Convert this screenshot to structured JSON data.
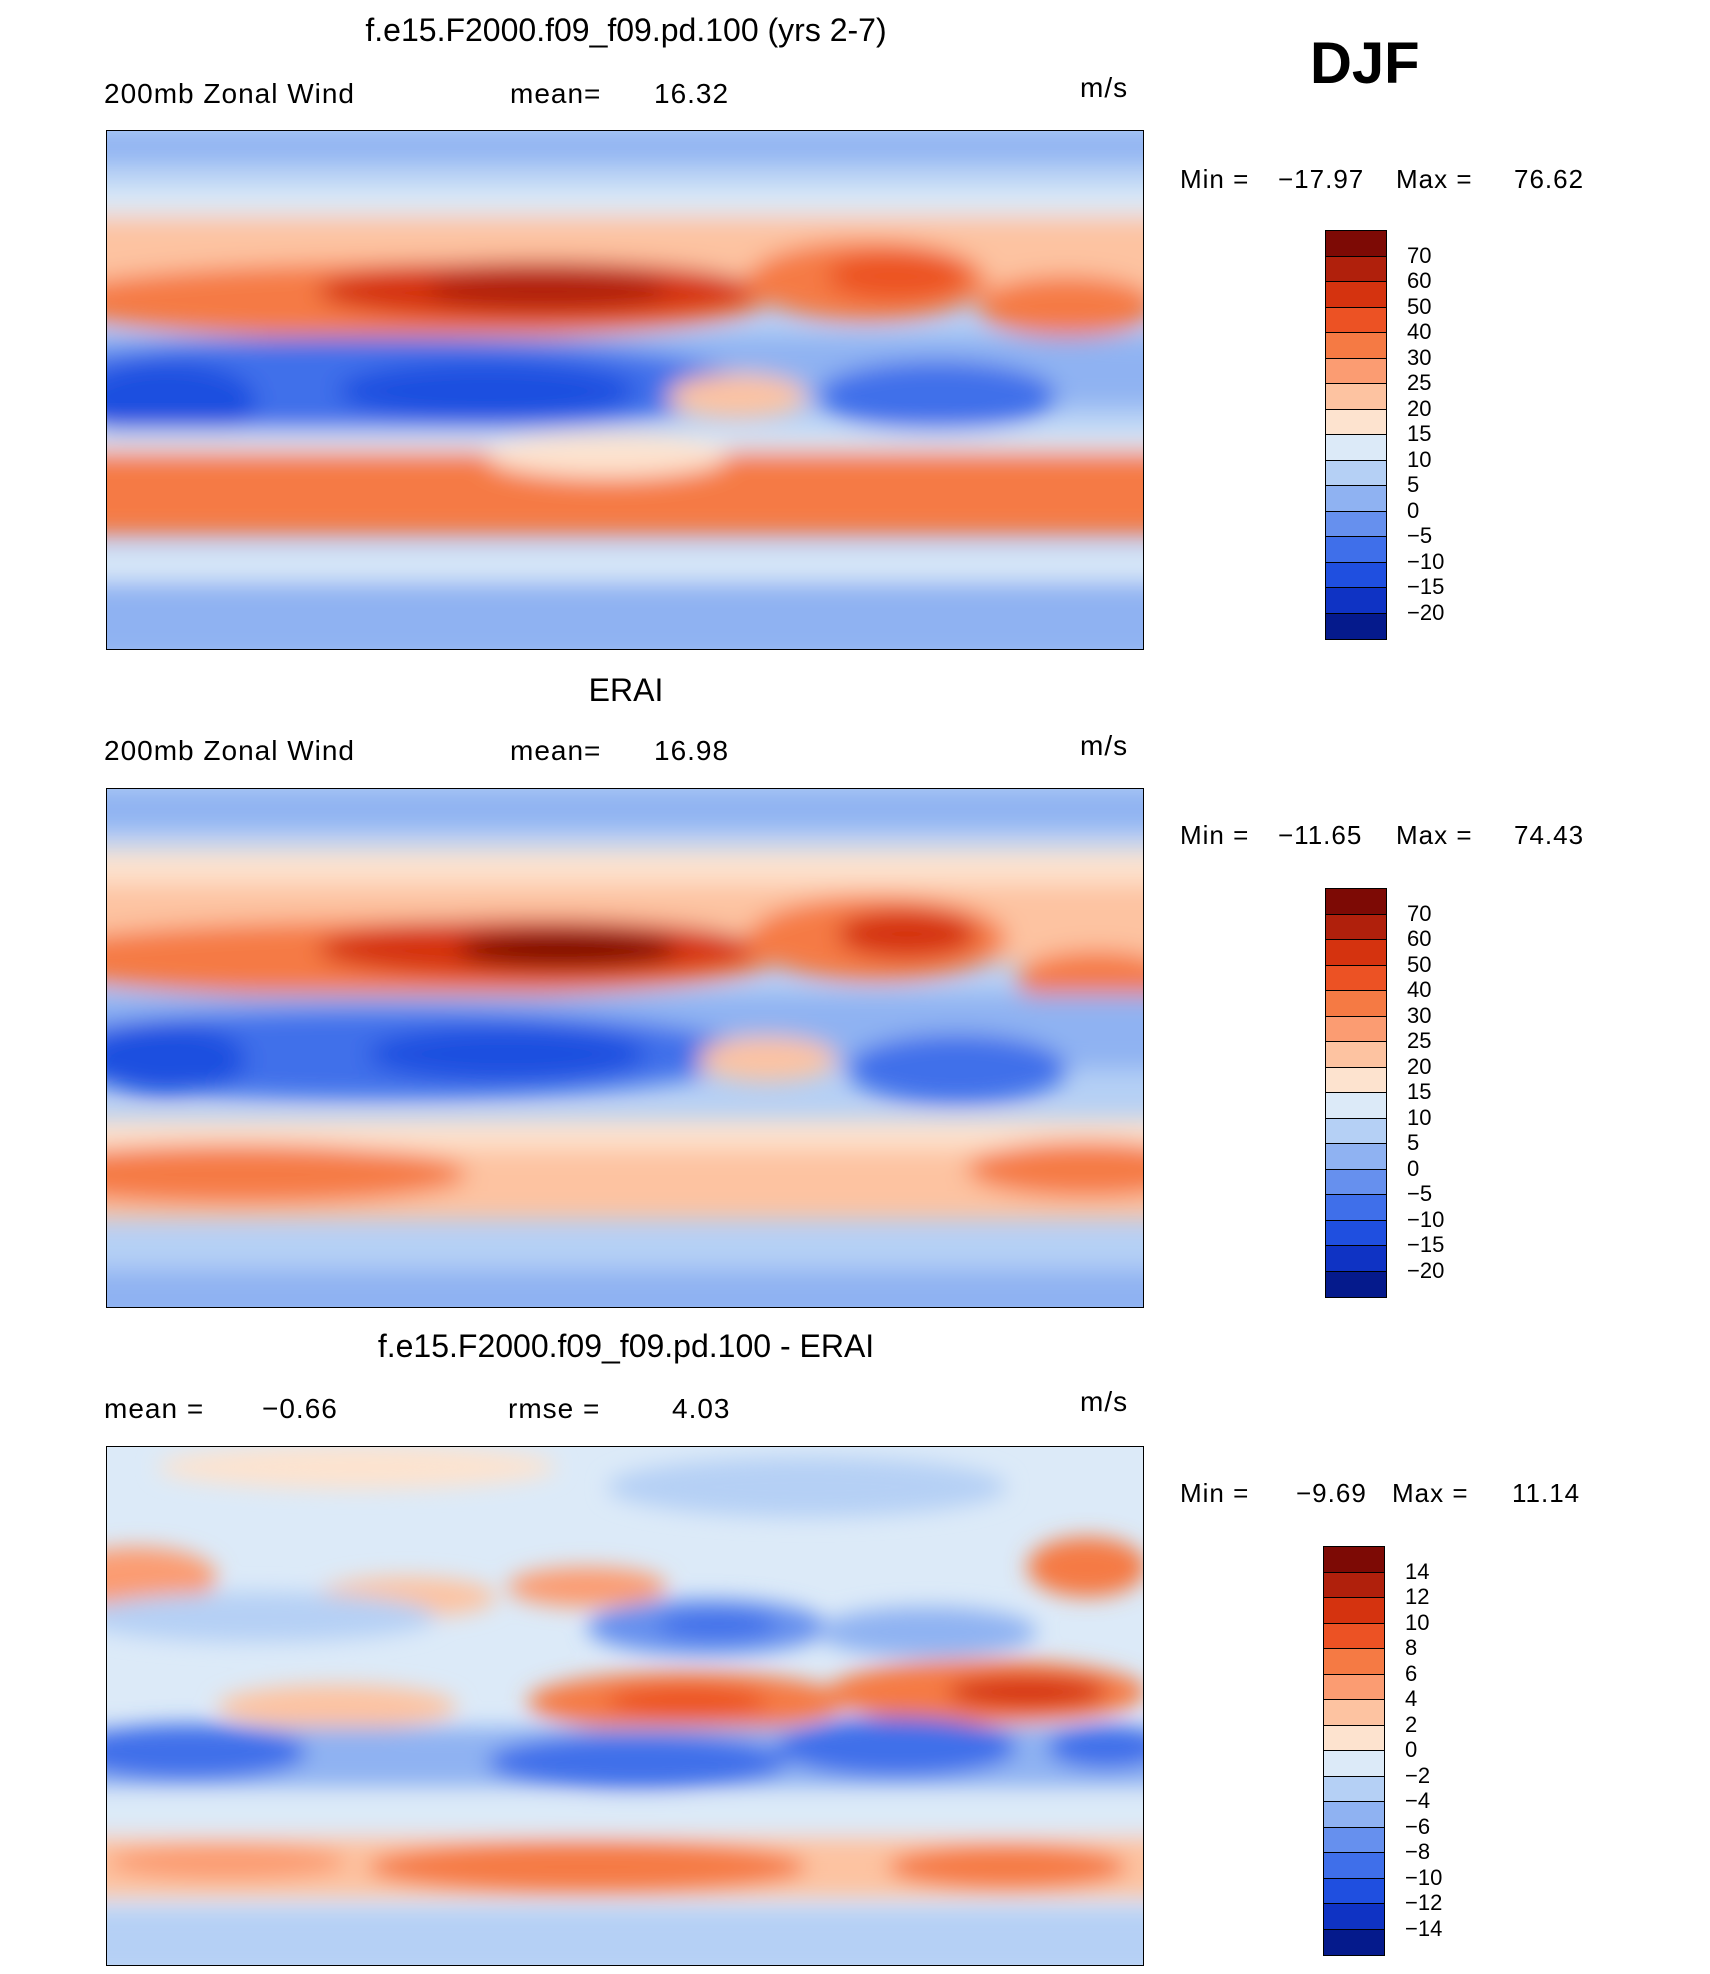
{
  "header": {
    "season": "DJF"
  },
  "panels": [
    {
      "title": "f.e15.F2000.f09_f09.pd.100 (yrs 2-7)",
      "left_label": "200mb  Zonal  Wind",
      "stat1_label": "mean=",
      "stat1_value": "16.32",
      "stat2_label": "",
      "stat2_value": "",
      "units": "m/s",
      "min_label": "Min  =",
      "min_value": "−17.97",
      "max_label": "Max  =",
      "max_value": "76.62",
      "levels": [
        "70",
        "60",
        "50",
        "40",
        "30",
        "25",
        "20",
        "15",
        "10",
        "5",
        "0",
        "−5",
        "−10",
        "−15",
        "−20"
      ],
      "colors": [
        "#7d0a05",
        "#b0200c",
        "#d5330f",
        "#ec5224",
        "#f57a44",
        "#fb9c72",
        "#fdc3a1",
        "#fde3cf",
        "#dceaf8",
        "#b5d0f5",
        "#8fb2f2",
        "#6690ee",
        "#3f6fea",
        "#1f4fe0",
        "#0f33c4",
        "#051a8c"
      ]
    },
    {
      "title": "ERAI",
      "left_label": "200mb  Zonal  Wind",
      "stat1_label": "mean=",
      "stat1_value": "16.98",
      "stat2_label": "",
      "stat2_value": "",
      "units": "m/s",
      "min_label": "Min  =",
      "min_value": "−11.65",
      "max_label": "Max  =",
      "max_value": "74.43",
      "levels": [
        "70",
        "60",
        "50",
        "40",
        "30",
        "25",
        "20",
        "15",
        "10",
        "5",
        "0",
        "−5",
        "−10",
        "−15",
        "−20"
      ],
      "colors": [
        "#7d0a05",
        "#b0200c",
        "#d5330f",
        "#ec5224",
        "#f57a44",
        "#fb9c72",
        "#fdc3a1",
        "#fde3cf",
        "#dceaf8",
        "#b5d0f5",
        "#8fb2f2",
        "#6690ee",
        "#3f6fea",
        "#1f4fe0",
        "#0f33c4",
        "#051a8c"
      ]
    },
    {
      "title": "f.e15.F2000.f09_f09.pd.100 - ERAI",
      "left_label": "mean  =",
      "stat1_label": "−0.66",
      "stat1_value": "",
      "stat2_label": "rmse  =",
      "stat2_value": "4.03",
      "units": "m/s",
      "min_label": "Min  =",
      "min_value": "−9.69",
      "max_label": "Max  =",
      "max_value": "11.14",
      "levels": [
        "14",
        "12",
        "10",
        "8",
        "6",
        "4",
        "2",
        "0",
        "−2",
        "−4",
        "−6",
        "−8",
        "−10",
        "−12",
        "−14"
      ],
      "colors": [
        "#7d0a05",
        "#b0200c",
        "#d5330f",
        "#ec5224",
        "#f57a44",
        "#fb9c72",
        "#fdc3a1",
        "#fde3cf",
        "#dceaf8",
        "#b5d0f5",
        "#8fb2f2",
        "#6690ee",
        "#3f6fea",
        "#1f4fe0",
        "#0f33c4",
        "#051a8c"
      ]
    }
  ]
}
